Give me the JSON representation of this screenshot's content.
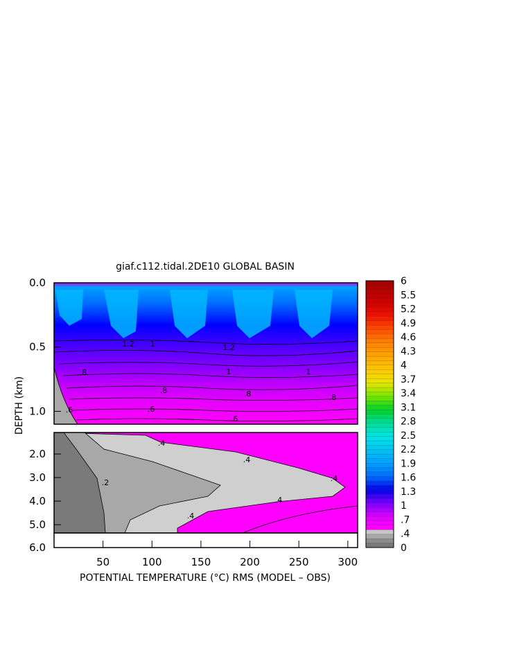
{
  "chart_data": {
    "type": "heatmap",
    "title": "giaf.c112.tidal.2DE10 GLOBAL BASIN",
    "xlabel": "POTENTIAL TEMPERATURE (°C) RMS (MODEL – OBS)",
    "ylabel": "DEPTH (km)",
    "xlim": [
      0,
      310
    ],
    "x_ticks": [
      {
        "value": 50,
        "label": "50"
      },
      {
        "value": 100,
        "label": "100"
      },
      {
        "value": 150,
        "label": "150"
      },
      {
        "value": 200,
        "label": "200"
      },
      {
        "value": 250,
        "label": "250"
      },
      {
        "value": 300,
        "label": "300"
      }
    ],
    "y_ticks_upper": [
      {
        "value": 0.0,
        "label": "0.0"
      },
      {
        "value": 0.5,
        "label": "0.5"
      },
      {
        "value": 1.0,
        "label": "1.0"
      }
    ],
    "y_ticks_lower": [
      {
        "value": 2.0,
        "label": "2.0"
      },
      {
        "value": 3.0,
        "label": "3.0"
      },
      {
        "value": 4.0,
        "label": "4.0"
      },
      {
        "value": 5.0,
        "label": "5.0"
      },
      {
        "value": 6.0,
        "label": "6.0"
      }
    ],
    "colorbar": {
      "min": 0,
      "max": 6,
      "tick_labels": [
        "6",
        "5.5",
        "5.2",
        "4.9",
        "4.6",
        "4.3",
        "4",
        "3.7",
        "3.4",
        "3.1",
        "2.8",
        "2.5",
        "2.2",
        "1.9",
        "1.6",
        "1.3",
        "1",
        ".7",
        ".4",
        "0"
      ]
    },
    "contour_labels_upper": [
      ".8",
      ".8",
      ".8",
      ".8",
      ".6",
      ".6",
      ".6",
      "1",
      "1",
      "1",
      "1.2",
      "1.2"
    ],
    "contour_labels_lower": [
      ".4",
      ".4",
      ".4",
      ".4",
      ".4",
      ".2"
    ],
    "colors": {
      "grey_dark": "#7a7a7a",
      "grey_mid": "#a8a8a8",
      "grey_light": "#cfcfcf",
      "magenta": "#ff00ff",
      "blue": "#0000ff",
      "cyan_blue": "#00a0ff"
    }
  }
}
